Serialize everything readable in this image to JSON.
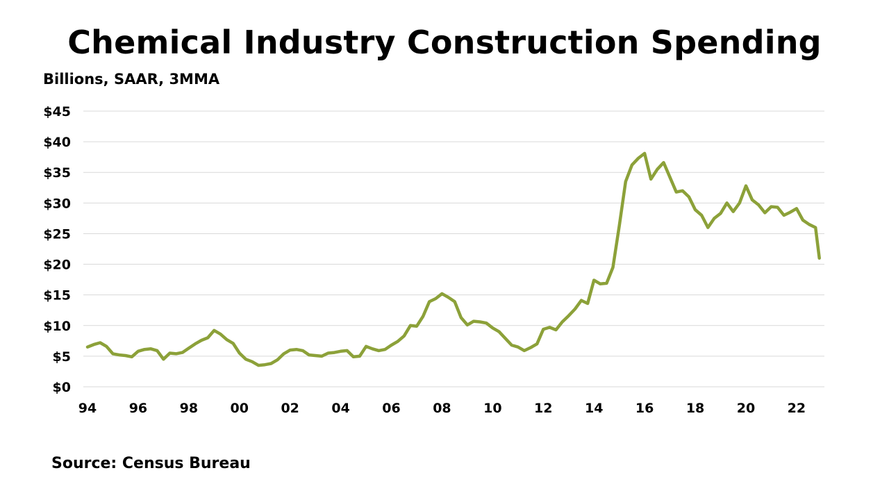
{
  "title": "Chemical Industry Construction Spending",
  "subtitle": "Billions, SAAR, 3MMA",
  "source": "Source: Census Bureau",
  "colors": {
    "line": "#8ca139",
    "grid": "#d9d9d9"
  },
  "chart_data": {
    "type": "line",
    "title": "Chemical Industry Construction Spending",
    "ylabel": "Billions, SAAR, 3MMA",
    "xlabel": "",
    "ylim": [
      0,
      45
    ],
    "xlim": [
      1994,
      2023
    ],
    "y_ticks": [
      0,
      5,
      10,
      15,
      20,
      25,
      30,
      35,
      40,
      45
    ],
    "y_tick_labels": [
      "$0",
      "$5",
      "$10",
      "$15",
      "$20",
      "$25",
      "$30",
      "$35",
      "$40",
      "$45"
    ],
    "x_ticks": [
      1994,
      1996,
      1998,
      2000,
      2002,
      2004,
      2006,
      2008,
      2010,
      2012,
      2014,
      2016,
      2018,
      2020,
      2022
    ],
    "x_tick_labels": [
      "94",
      "96",
      "98",
      "00",
      "02",
      "04",
      "06",
      "08",
      "10",
      "12",
      "14",
      "16",
      "18",
      "20",
      "22"
    ],
    "grid": true,
    "legend": "none",
    "series": [
      {
        "x": [
          1994.0,
          1994.25,
          1994.5,
          1994.75,
          1995.0,
          1995.25,
          1995.5,
          1995.75,
          1996.0,
          1996.25,
          1996.5,
          1996.75,
          1997.0,
          1997.25,
          1997.5,
          1997.75,
          1998.0,
          1998.25,
          1998.5,
          1998.75,
          1999.0,
          1999.25,
          1999.5,
          1999.75,
          2000.0,
          2000.25,
          2000.5,
          2000.75,
          2001.0,
          2001.25,
          2001.5,
          2001.75,
          2002.0,
          2002.25,
          2002.5,
          2002.75,
          2003.0,
          2003.25,
          2003.5,
          2003.75,
          2004.0,
          2004.25,
          2004.5,
          2004.75,
          2005.0,
          2005.25,
          2005.5,
          2005.75,
          2006.0,
          2006.25,
          2006.5,
          2006.75,
          2007.0,
          2007.25,
          2007.5,
          2007.75,
          2008.0,
          2008.25,
          2008.5,
          2008.75,
          2009.0,
          2009.25,
          2009.5,
          2009.75,
          2010.0,
          2010.25,
          2010.5,
          2010.75,
          2011.0,
          2011.25,
          2011.5,
          2011.75,
          2012.0,
          2012.25,
          2012.5,
          2012.75,
          2013.0,
          2013.25,
          2013.5,
          2013.75,
          2014.0,
          2014.25,
          2014.5,
          2014.75,
          2015.0,
          2015.25,
          2015.5,
          2015.75,
          2016.0,
          2016.25,
          2016.5,
          2016.75,
          2017.0,
          2017.25,
          2017.5,
          2017.75,
          2018.0,
          2018.25,
          2018.5,
          2018.75,
          2019.0,
          2019.25,
          2019.5,
          2019.75,
          2020.0,
          2020.25,
          2020.5,
          2020.75,
          2021.0,
          2021.25,
          2021.5,
          2021.75,
          2022.0,
          2022.25,
          2022.5,
          2022.75,
          2022.9
        ],
        "values": [
          6.5,
          6.9,
          7.2,
          6.6,
          5.4,
          5.2,
          5.1,
          4.9,
          5.8,
          6.1,
          6.2,
          5.9,
          4.5,
          5.5,
          5.4,
          5.6,
          6.3,
          7.0,
          7.6,
          8.0,
          9.2,
          8.6,
          7.7,
          7.1,
          5.5,
          4.5,
          4.1,
          3.5,
          3.6,
          3.8,
          4.4,
          5.4,
          6.0,
          6.1,
          5.9,
          5.2,
          5.1,
          5.0,
          5.5,
          5.6,
          5.8,
          5.9,
          4.9,
          5.0,
          6.6,
          6.2,
          5.9,
          6.1,
          6.8,
          7.4,
          8.3,
          10.0,
          9.9,
          11.5,
          13.9,
          14.4,
          15.2,
          14.6,
          13.9,
          11.3,
          10.1,
          10.7,
          10.6,
          10.4,
          9.6,
          9.0,
          7.9,
          6.8,
          6.5,
          5.9,
          6.4,
          7.0,
          9.4,
          9.7,
          9.3,
          10.6,
          11.6,
          12.7,
          14.1,
          13.6,
          17.4,
          16.8,
          16.9,
          19.5,
          26.3,
          33.5,
          36.2,
          37.3,
          38.1,
          33.9,
          35.5,
          36.6,
          34.2,
          31.8,
          32.0,
          31.0,
          28.9,
          28.0,
          26.0,
          27.5,
          28.3,
          30.0,
          28.6,
          30.0,
          32.8,
          30.5,
          29.7,
          28.4,
          29.4,
          29.3,
          28.0,
          28.5,
          29.1,
          27.2,
          26.5,
          26.0,
          21.0
        ]
      }
    ]
  }
}
